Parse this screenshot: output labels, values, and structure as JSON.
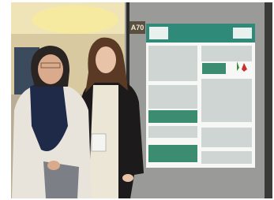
{
  "booth_sign": "A70"
}
